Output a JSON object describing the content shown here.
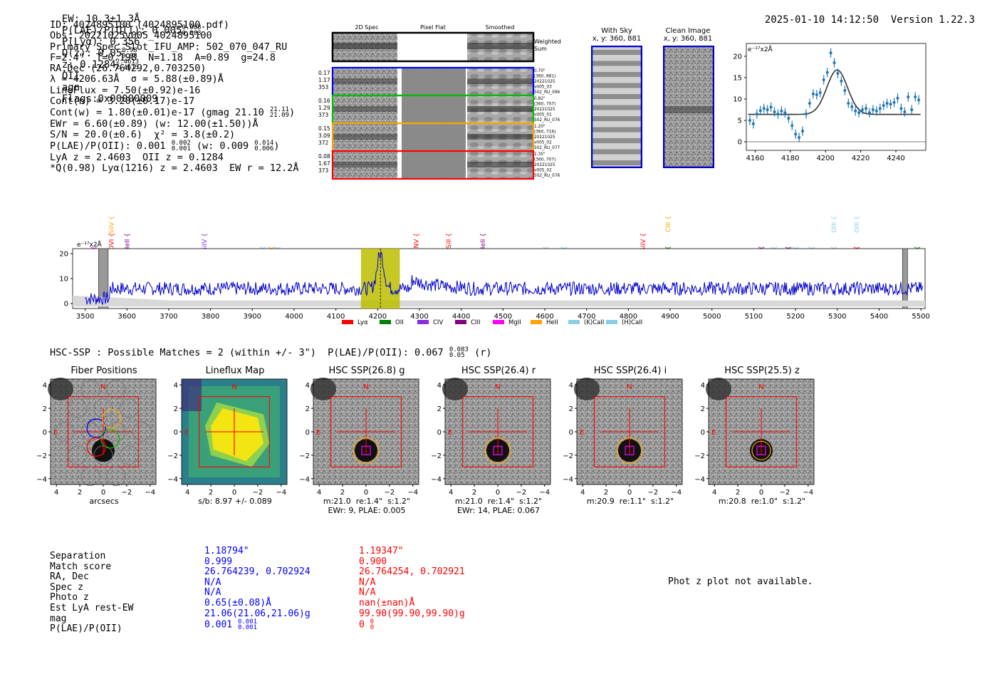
{
  "header": {
    "ew": "EW: 10.3±1.3Å",
    "plae_label": "P(LAE)/P(OII): 0.005",
    "plae_hi": "0.008",
    "plae_lo": "0.003",
    "plya_label": "P(Lyα): 0.356",
    "qz_label": "Q(z): 0.05",
    "qz_hi": "0.98",
    "qz_lo": "0.98",
    "z_label": "z: 0.1284",
    "z_hi": "2.4613",
    "z_lo": "2.4613",
    "line": "OII",
    "agn": "agn",
    "flags": "Flags:0x00000009",
    "datetime": "2025-01-10 14:12:50",
    "version": "Version 1.22.3"
  },
  "info": {
    "id": "ID: 4024895100 (4024895100.pdf)",
    "obs": "Obs: 20221025v005_4024895100",
    "primary": "Primary Spec_Slot_IFU_AMP: 502_070_047_RU",
    "fitline": "F=2.4\"  T=0.198  N=1.18  A=0.89  g=24.8",
    "radec": "RA,Dec (26.764292,0.703250)",
    "lambda": "λ = 4206.63Å  σ = 5.88(±0.89)Å",
    "lineflux": "LineFlux = 7.50(±0.92)e-16",
    "contn": "Cont(n) = 3.20(±0.17)e-17",
    "contw": "Cont(w) = 1.80(±0.01)e-17 (gmag 21.10",
    "contw_hi": "21.11",
    "contw_lo": "21.09",
    "contw_end": ")",
    "ewr": "EWr = 6.60(±0.89) (w: 12.00(±1.50))Å",
    "sn": "S/N = 20.0(±0.6)  χ² = 3.8(±0.2)",
    "plae": "P(LAE)/P(OII): 0.001",
    "plae_hi": "0.002",
    "plae_lo": "0.001",
    "plae_w": " (w: 0.009",
    "plae_w_hi": "0.014",
    "plae_w_lo": "0.006",
    "plae_w_end": ")",
    "lyaz": "LyA z = 2.4603  OII z = 0.1284",
    "q": "*Q(0.98) Lyα(1216) z = 2.4603  EW r = 12.2Å"
  },
  "spec2d": {
    "col_labels": [
      "2D Spec",
      "Pixel Flat",
      "Smoothed"
    ],
    "weighted": "Weighted Sum",
    "rows": [
      {
        "left": [
          "0.17",
          "1.17",
          "353"
        ],
        "right": [
          "0.70\"",
          "(360, 881)",
          "20221025",
          "v005_03",
          "502_RU_096"
        ],
        "color": "#0000ff"
      },
      {
        "left": [
          "0.16",
          "1.29",
          "373"
        ],
        "right": [
          "0.82\"",
          "(360, 707)",
          "20221025",
          "v005_01",
          "502_RU_076"
        ],
        "color": "#00c000"
      },
      {
        "left": [
          "0.15",
          "3.09",
          "372"
        ],
        "right": [
          "1.20\"",
          "(360, 716)",
          "20221025",
          "v005_02",
          "502_RU_077"
        ],
        "color": "#ffa500"
      },
      {
        "left": [
          "0.08",
          "1.67",
          "373"
        ],
        "right": [
          "1.35\"",
          "(360, 707)",
          "20221025",
          "v005_02",
          "502_RU_076"
        ],
        "color": "#ff0000"
      }
    ]
  },
  "sky": {
    "with_sky": "With Sky",
    "with_sky_xy": "x, y: 360, 881",
    "clean": "Clean Image",
    "clean_xy": "x, y: 360, 881"
  },
  "chart_data": [
    {
      "type": "scatter",
      "title": "",
      "unit_label": "e⁻¹⁷x2Å",
      "xlim": [
        4155,
        4257
      ],
      "ylim": [
        -2,
        23
      ],
      "xticks": [
        4160,
        4180,
        4200,
        4220,
        4240
      ],
      "yticks": [
        0,
        5,
        10,
        15,
        20
      ],
      "x": [
        4157,
        4159,
        4161,
        4163,
        4165,
        4167,
        4169,
        4171,
        4173,
        4175,
        4177,
        4179,
        4181,
        4183,
        4185,
        4187,
        4189,
        4191,
        4193,
        4195,
        4197,
        4199,
        4201,
        4203,
        4205,
        4207,
        4209,
        4211,
        4213,
        4215,
        4217,
        4219,
        4221,
        4223,
        4225,
        4227,
        4229,
        4231,
        4233,
        4235,
        4237,
        4239,
        4241,
        4243,
        4245,
        4247,
        4249,
        4251,
        4253
      ],
      "y": [
        5.0,
        4.2,
        6.5,
        7.3,
        7.8,
        7.5,
        8.1,
        7.0,
        6.5,
        7.2,
        6.8,
        5.5,
        3.8,
        1.8,
        1.0,
        2.5,
        6.5,
        9.0,
        11.2,
        11.0,
        11.5,
        14.5,
        16.2,
        20.8,
        18.5,
        16.0,
        14.2,
        12.0,
        9.0,
        8.2,
        7.2,
        6.8,
        7.5,
        7.8,
        6.8,
        7.5,
        7.2,
        7.8,
        8.5,
        9.0,
        8.8,
        9.2,
        10.2,
        7.8,
        7.0,
        10.5,
        7.5,
        10.5,
        9.8
      ],
      "fit": {
        "model": "gaussian",
        "center": 4206.63,
        "sigma": 5.88,
        "amplitude": 10.4,
        "continuum": 6.4
      }
    },
    {
      "type": "line",
      "unit_label": "e⁻¹⁷x2Å",
      "xlim": [
        3470,
        5510
      ],
      "ylim": [
        -2,
        22
      ],
      "xticks": [
        3500,
        3600,
        3700,
        3800,
        3900,
        4000,
        4100,
        4200,
        4300,
        4400,
        4500,
        4600,
        4700,
        4800,
        4900,
        5000,
        5100,
        5200,
        5300,
        5400,
        5500
      ],
      "yticks": [
        0,
        10,
        20
      ],
      "highlight_range": [
        4160,
        4253
      ],
      "line_center": 4206.63,
      "masked_ranges": [
        [
          3532,
          3555
        ],
        [
          5456,
          5468
        ]
      ],
      "continuum": 6.0,
      "legend": [
        {
          "label": "Lyα",
          "color": "#ff0000"
        },
        {
          "label": "OII",
          "color": "#008000"
        },
        {
          "label": "CIV",
          "color": "#8a2be2"
        },
        {
          "label": "CIII",
          "color": "#800080"
        },
        {
          "label": "MgII",
          "color": "#ff00ff"
        },
        {
          "label": "HeII",
          "color": "#ffa500"
        },
        {
          "label": "(K)CaII",
          "color": "#87ceeb"
        },
        {
          "label": "(H)CaII",
          "color": "#87ceeb"
        }
      ],
      "line_markers": [
        {
          "label": "CII",
          "x": 3520,
          "row": 2,
          "color": "#ff00ff"
        },
        {
          "label": "SiIV",
          "x": 3563,
          "row": 0,
          "color": "#ffa500"
        },
        {
          "label": "OVI",
          "x": 3563,
          "row": 1,
          "color": "#ff0000"
        },
        {
          "label": "HeII",
          "x": 3600,
          "row": 1,
          "color": "#800080"
        },
        {
          "label": "SiIV",
          "x": 3785,
          "row": 1,
          "color": "#8a2be2"
        },
        {
          "label": "OII",
          "x": 3925,
          "row": 2,
          "color": "#87ceeb"
        },
        {
          "label": "CIV",
          "x": 3945,
          "row": 2,
          "color": "#ffa500"
        },
        {
          "label": "OII",
          "x": 3960,
          "row": 2,
          "color": "#87ceeb"
        },
        {
          "label": "NV",
          "x": 4292,
          "row": 1,
          "color": "#ff0000"
        },
        {
          "label": "SiII",
          "x": 4370,
          "row": 1,
          "color": "#ff0000"
        },
        {
          "label": "HeII",
          "x": 4452,
          "row": 1,
          "color": "#800080"
        },
        {
          "label": "Hγ",
          "x": 4602,
          "row": 2,
          "color": "#87ceeb"
        },
        {
          "label": "Hγ",
          "x": 4645,
          "row": 2,
          "color": "#87ceeb"
        },
        {
          "label": "SiIV",
          "x": 4835,
          "row": 1,
          "color": "#ff0000"
        },
        {
          "label": "CIII",
          "x": 4895,
          "row": 0,
          "color": "#ffa500"
        },
        {
          "label": "Hγ",
          "x": 4895,
          "row": 2,
          "color": "#008000"
        },
        {
          "label": "CII",
          "x": 5118,
          "row": 2,
          "color": "#800080"
        },
        {
          "label": "Hβ",
          "x": 5148,
          "row": 2,
          "color": "#87ceeb"
        },
        {
          "label": "CIII",
          "x": 5183,
          "row": 2,
          "color": "#800080"
        },
        {
          "label": "Hβ",
          "x": 5200,
          "row": 2,
          "color": "#87ceeb"
        },
        {
          "label": "OIII",
          "x": 5238,
          "row": 2,
          "color": "#87ceeb"
        },
        {
          "label": "OIII",
          "x": 5292,
          "row": 0,
          "color": "#87ceeb"
        },
        {
          "label": "OIII",
          "x": 5292,
          "row": 2,
          "color": "#87ceeb"
        },
        {
          "label": "OIII",
          "x": 5346,
          "row": 0,
          "color": "#87ceeb"
        },
        {
          "label": "CIV",
          "x": 5346,
          "row": 2,
          "color": "#ff0000"
        },
        {
          "label": "Hβ",
          "x": 5491,
          "row": 2,
          "color": "#008000"
        }
      ]
    }
  ],
  "hsc_header": "HSC-SSP : Possible Matches = 2 (within +/- 3\")  P(LAE)/P(OII): 0.067",
  "hsc_hi": "0.083",
  "hsc_lo": "0.05",
  "hsc_tail": "(r)",
  "cutouts": {
    "ticks": [
      "4",
      "2",
      "0",
      "−2",
      "−4"
    ],
    "panels": [
      {
        "title": "Fiber Positions",
        "caption1": "arcsecs",
        "caption2": ""
      },
      {
        "title": "Lineflux Map",
        "caption1": "s/b: 8.97 +/- 0.089",
        "caption2": ""
      },
      {
        "title": "HSC SSP(26.8) g",
        "caption1": "m:21.0  re:1.4\"  s:1.2\"",
        "caption2": "EWr: 9, PLAE: 0.005"
      },
      {
        "title": "HSC SSP(26.4) r",
        "caption1": "m:21.0  re:1.4\"  s:1.2\"",
        "caption2": "EWr: 14, PLAE: 0.067"
      },
      {
        "title": "HSC SSP(26.4) i",
        "caption1": "m:20.9  re:1.1\"  s:1.2\"",
        "caption2": ""
      },
      {
        "title": "HSC SSP(25.5) z",
        "caption1": "m:20.8  re:1.0\"  s:1.2\"",
        "caption2": ""
      }
    ],
    "n_label": "N",
    "e_label": "E"
  },
  "matches": {
    "labels": [
      "Separation",
      "Match score",
      "RA, Dec",
      "Spec z",
      "Photo z",
      "Est LyA rest-EW",
      "mag",
      "P(LAE)/P(OII)"
    ],
    "col1": [
      "1.18794\"",
      "0.999",
      "26.764239, 0.702924",
      "N/A",
      "N/A",
      "0.65(±0.08)Å",
      "21.06(21.06,21.06)g",
      "0.001"
    ],
    "col1_hi": "0.001",
    "col1_lo": "0.001",
    "col2": [
      "1.19347\"",
      "0.900",
      "26.764254, 0.702921",
      "N/A",
      "N/A",
      "nan(±nan)Å",
      "99.90(99.90,99.90)g",
      "0"
    ],
    "col2_hi": "0",
    "col2_lo": "0",
    "photz_msg": "Phot z plot not available."
  }
}
